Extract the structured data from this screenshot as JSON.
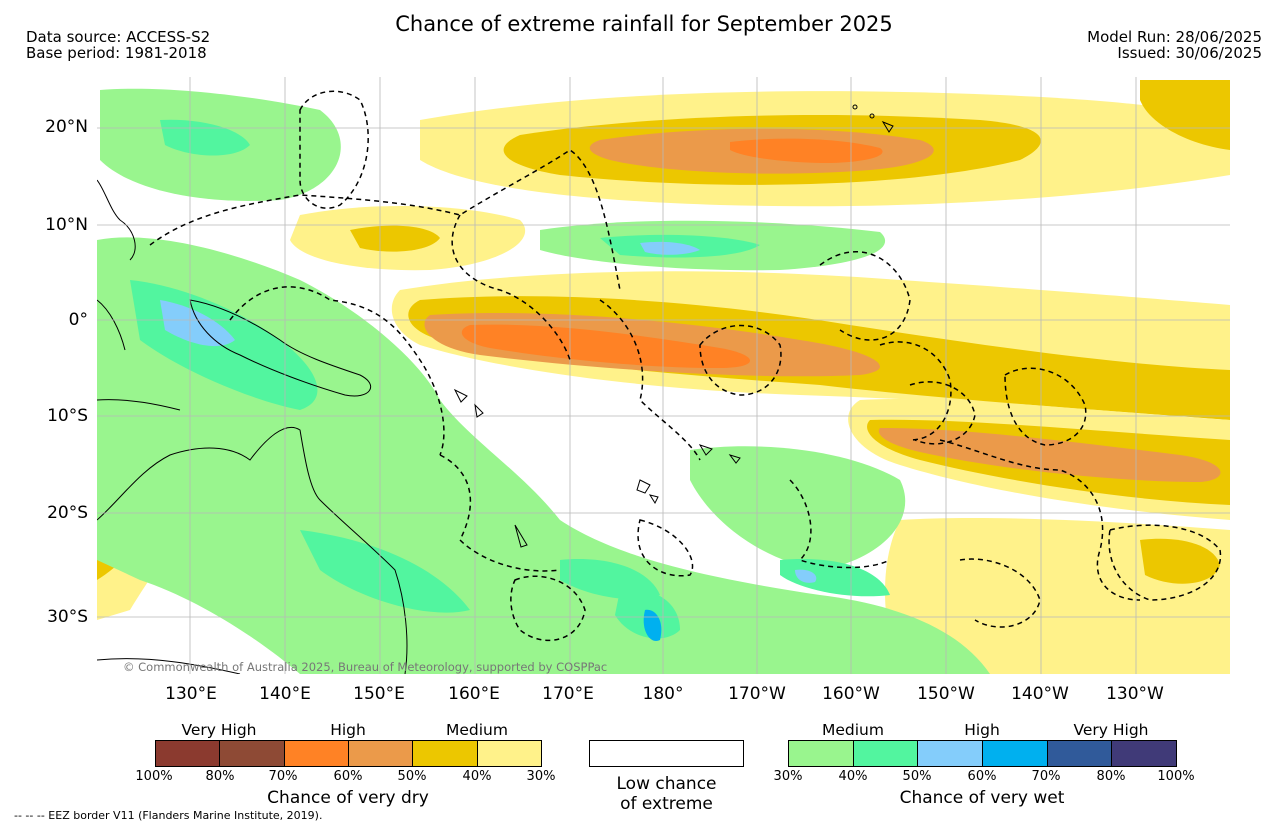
{
  "header": {
    "title": "Chance of extreme rainfall for September 2025",
    "data_source": "Data source: ACCESS-S2",
    "base_period": "Base period: 1981-2018",
    "model_run": "Model Run: 28/06/2025",
    "issued": "Issued: 30/06/2025"
  },
  "map": {
    "lat_labels": [
      "20°N",
      "10°N",
      "0°",
      "10°S",
      "20°S",
      "30°S"
    ],
    "lon_labels": [
      "130°E",
      "140°E",
      "150°E",
      "160°E",
      "170°E",
      "180°",
      "170°W",
      "160°W",
      "150°W",
      "140°W",
      "130°W"
    ],
    "copyright": "© Commonwealth of Australia 2025, Bureau of Meteorology, supported by COSPPac",
    "grid": true
  },
  "legend": {
    "dry": {
      "group_labels": [
        "Very High",
        "High",
        "Medium"
      ],
      "colors": [
        "#8b3a2f",
        "#8e4a35",
        "#ff8225",
        "#eb9a4a",
        "#ecc700",
        "#fff28a"
      ],
      "ticks": [
        "100%",
        "80%",
        "70%",
        "60%",
        "50%",
        "40%",
        "30%"
      ],
      "caption": "Chance of very dry"
    },
    "neutral": {
      "color": "#ffffff",
      "caption_line1": "Low chance",
      "caption_line2": "of extreme"
    },
    "wet": {
      "group_labels": [
        "Medium",
        "High",
        "Very High"
      ],
      "colors": [
        "#99f58e",
        "#52f59f",
        "#84cdfb",
        "#00b0ef",
        "#305a9a",
        "#403a78"
      ],
      "ticks": [
        "30%",
        "40%",
        "50%",
        "60%",
        "70%",
        "80%",
        "100%"
      ],
      "caption": "Chance of very wet"
    }
  },
  "footer": {
    "eez_note": "-- -- -- EEZ border V11 (Flanders Marine Institute, 2019)."
  }
}
